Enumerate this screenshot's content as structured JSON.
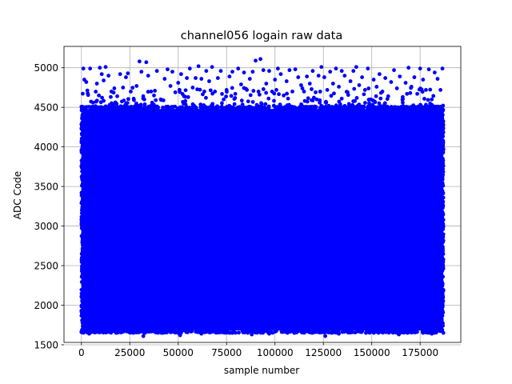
{
  "chart_data": {
    "type": "scatter",
    "title": "channel056 logain raw data",
    "xlabel": "sample number",
    "ylabel": "ADC Code",
    "xlim": [
      -9000,
      196000
    ],
    "ylim": [
      1530,
      5270
    ],
    "xticks": [
      0,
      25000,
      50000,
      75000,
      100000,
      125000,
      150000,
      175000
    ],
    "yticks": [
      1500,
      2000,
      2500,
      3000,
      3500,
      4000,
      4500,
      5000
    ],
    "grid": true,
    "marker_color": "#0000ff",
    "series": [
      {
        "x_range": [
          0,
          187000
        ],
        "dense_band": [
          1680,
          4480
        ],
        "min_y": 1610,
        "max_y": 5110,
        "outliers": [
          [
            1000,
            4990
          ],
          [
            1500,
            4850
          ],
          [
            2500,
            4820
          ],
          [
            4500,
            4990
          ],
          [
            6000,
            4560
          ],
          [
            8000,
            4800
          ],
          [
            9500,
            5000
          ],
          [
            10500,
            4920
          ],
          [
            11500,
            4840
          ],
          [
            12500,
            5010
          ],
          [
            14000,
            4900
          ],
          [
            15500,
            4700
          ],
          [
            17000,
            4740
          ],
          [
            18500,
            4640
          ],
          [
            20000,
            4920
          ],
          [
            21500,
            4750
          ],
          [
            23000,
            4880
          ],
          [
            24000,
            4930
          ],
          [
            25500,
            4700
          ],
          [
            27000,
            4610
          ],
          [
            28500,
            4770
          ],
          [
            30000,
            5080
          ],
          [
            31000,
            4950
          ],
          [
            32500,
            4600
          ],
          [
            33500,
            5070
          ],
          [
            34500,
            4900
          ],
          [
            36000,
            4700
          ],
          [
            37500,
            4650
          ],
          [
            39000,
            4960
          ],
          [
            41000,
            4600
          ],
          [
            43000,
            4860
          ],
          [
            44500,
            4980
          ],
          [
            46000,
            4770
          ],
          [
            47000,
            4950
          ],
          [
            48500,
            4690
          ],
          [
            50000,
            4810
          ],
          [
            51500,
            4920
          ],
          [
            53000,
            4640
          ],
          [
            54500,
            4870
          ],
          [
            56000,
            4990
          ],
          [
            57500,
            4750
          ],
          [
            59000,
            4870
          ],
          [
            60500,
            5020
          ],
          [
            62000,
            4860
          ],
          [
            63500,
            4700
          ],
          [
            64500,
            4960
          ],
          [
            66000,
            4830
          ],
          [
            67500,
            5010
          ],
          [
            69000,
            4700
          ],
          [
            70500,
            4870
          ],
          [
            72000,
            4960
          ],
          [
            73500,
            4600
          ],
          [
            75000,
            4720
          ],
          [
            76500,
            4890
          ],
          [
            78000,
            4950
          ],
          [
            79500,
            4670
          ],
          [
            81000,
            4990
          ],
          [
            82500,
            4790
          ],
          [
            84000,
            4940
          ],
          [
            85500,
            4720
          ],
          [
            87000,
            4860
          ],
          [
            88500,
            4950
          ],
          [
            90000,
            5090
          ],
          [
            91500,
            4700
          ],
          [
            92500,
            5110
          ],
          [
            94000,
            4970
          ],
          [
            95500,
            4800
          ],
          [
            97000,
            4960
          ],
          [
            98500,
            4700
          ],
          [
            100000,
            4850
          ],
          [
            101500,
            4990
          ],
          [
            103000,
            4920
          ],
          [
            104500,
            4650
          ],
          [
            106000,
            4830
          ],
          [
            107500,
            4970
          ],
          [
            109000,
            4700
          ],
          [
            110500,
            4980
          ],
          [
            112000,
            4880
          ],
          [
            113500,
            4780
          ],
          [
            115000,
            4700
          ],
          [
            116500,
            4890
          ],
          [
            118000,
            4800
          ],
          [
            119500,
            4960
          ],
          [
            121000,
            4690
          ],
          [
            122500,
            4900
          ],
          [
            124000,
            5010
          ],
          [
            125500,
            4880
          ],
          [
            127000,
            4720
          ],
          [
            128500,
            4950
          ],
          [
            130000,
            4800
          ],
          [
            131500,
            4990
          ],
          [
            133000,
            4760
          ],
          [
            134500,
            4960
          ],
          [
            136000,
            4900
          ],
          [
            137500,
            4690
          ],
          [
            139000,
            4830
          ],
          [
            140500,
            4960
          ],
          [
            142000,
            5010
          ],
          [
            143500,
            4780
          ],
          [
            145000,
            4880
          ],
          [
            146500,
            4720
          ],
          [
            148000,
            4990
          ],
          [
            149500,
            4600
          ],
          [
            151000,
            4850
          ],
          [
            152500,
            4760
          ],
          [
            154000,
            4920
          ],
          [
            155500,
            4700
          ],
          [
            157000,
            4870
          ],
          [
            158500,
            4640
          ],
          [
            160000,
            4820
          ],
          [
            161500,
            4970
          ],
          [
            163000,
            4740
          ],
          [
            164500,
            4890
          ],
          [
            166000,
            4630
          ],
          [
            167500,
            4810
          ],
          [
            169000,
            5000
          ],
          [
            170500,
            4760
          ],
          [
            172000,
            4880
          ],
          [
            173500,
            4670
          ],
          [
            175000,
            4990
          ],
          [
            176500,
            4850
          ],
          [
            178000,
            4720
          ],
          [
            179500,
            4980
          ],
          [
            181000,
            4600
          ],
          [
            182500,
            4940
          ],
          [
            184000,
            4860
          ],
          [
            185500,
            4720
          ],
          [
            186500,
            4990
          ]
        ],
        "low_outliers": [
          [
            4000,
            1640
          ],
          [
            18000,
            1650
          ],
          [
            32000,
            1610
          ],
          [
            42000,
            1650
          ],
          [
            51000,
            1620
          ],
          [
            62000,
            1640
          ],
          [
            78000,
            1650
          ],
          [
            88000,
            1630
          ],
          [
            97000,
            1640
          ],
          [
            110000,
            1650
          ],
          [
            126000,
            1610
          ],
          [
            133000,
            1640
          ],
          [
            147000,
            1650
          ],
          [
            164000,
            1630
          ],
          [
            181000,
            1640
          ]
        ]
      }
    ]
  }
}
